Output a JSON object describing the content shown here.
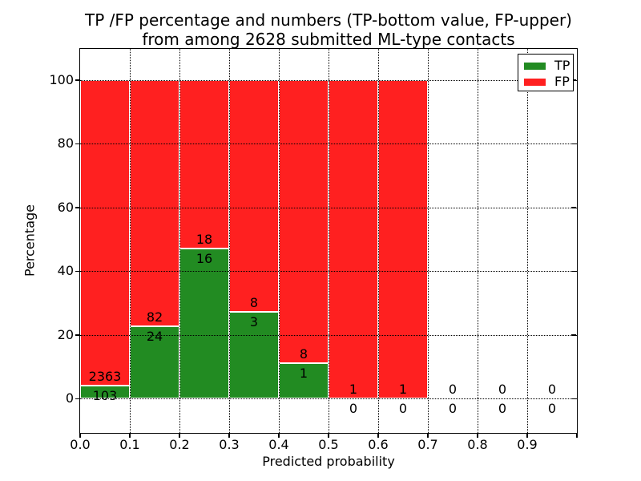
{
  "figure": {
    "title_line1": "TP /FP percentage and numbers (TP-bottom value, FP-upper)",
    "title_line2": "from among 2628 submitted ML-type contacts"
  },
  "chart_data": {
    "type": "bar",
    "stacked": true,
    "normalized_to_percent": true,
    "title": "TP /FP percentage and numbers (TP-bottom value, FP-upper) from among 2628 submitted ML-type contacts",
    "xlabel": "Predicted probability",
    "ylabel": "Percentage",
    "total_contacts": 2628,
    "bin_edges": [
      0.0,
      0.1,
      0.2,
      0.3,
      0.4,
      0.5,
      0.6,
      0.7,
      0.8,
      0.9,
      1.0
    ],
    "xtick_labels": [
      "0.0",
      "0.1",
      "0.2",
      "0.3",
      "0.4",
      "0.5",
      "0.6",
      "0.7",
      "0.8",
      "0.9"
    ],
    "yticks": [
      0,
      20,
      40,
      60,
      80,
      100
    ],
    "xlim": [
      0.0,
      1.0
    ],
    "ylim": [
      -10.8,
      109.8
    ],
    "grid": true,
    "grid_style": "dotted",
    "bar_edge_color": "#ffffff",
    "series": [
      {
        "name": "TP",
        "color": "#228b22",
        "counts": [
          103,
          24,
          16,
          3,
          1,
          0,
          0,
          0,
          0,
          0
        ]
      },
      {
        "name": "FP",
        "color": "#ff2020",
        "counts": [
          2363,
          82,
          18,
          8,
          8,
          1,
          1,
          0,
          0,
          0
        ]
      }
    ],
    "tp_percent_by_bin": [
      4.18,
      22.64,
      47.06,
      27.27,
      11.11,
      0.0,
      0.0,
      null,
      null,
      null
    ],
    "legend": {
      "position": "upper right",
      "entries": [
        {
          "label": "TP",
          "color": "#228b22"
        },
        {
          "label": "FP",
          "color": "#ff2020"
        }
      ]
    }
  }
}
